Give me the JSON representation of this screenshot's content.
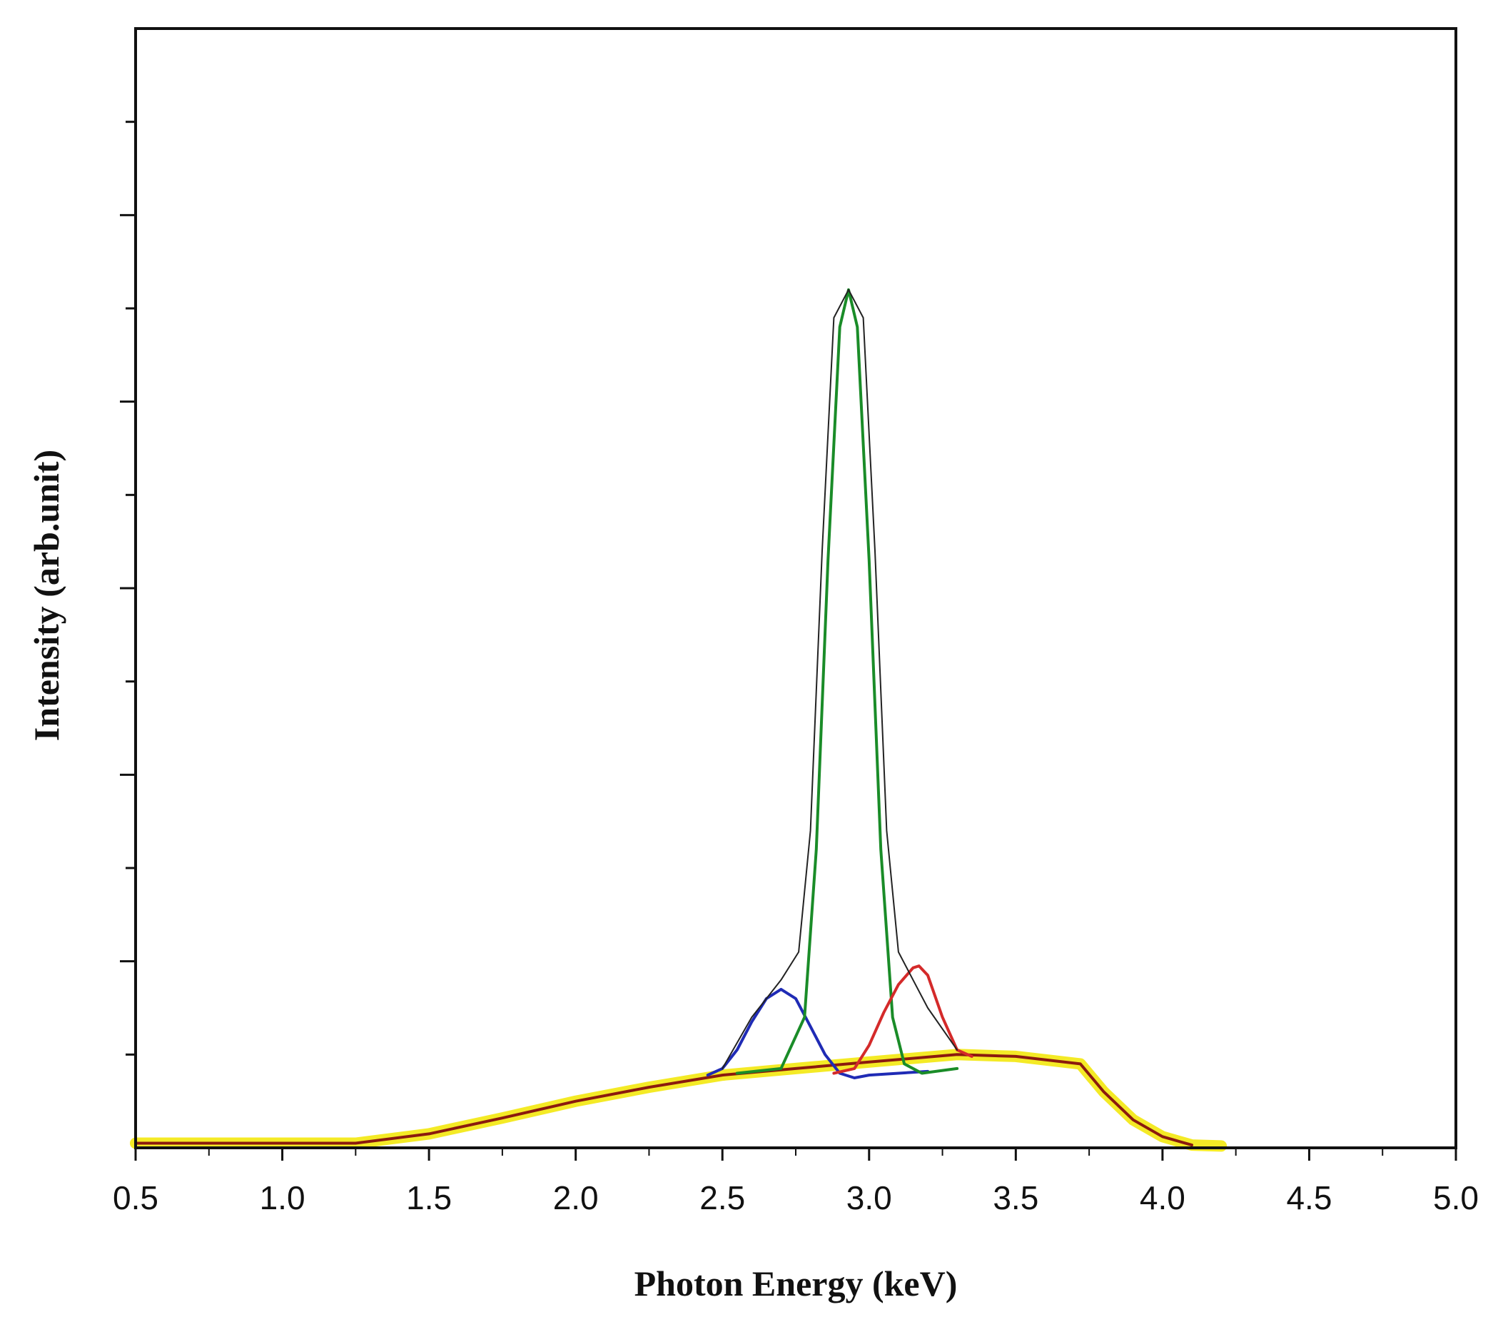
{
  "chart_data": {
    "type": "line",
    "title": "",
    "xlabel": "Photon Energy (keV)",
    "ylabel": "Intensity (arb.unit)",
    "xlim": [
      0.5,
      5.0
    ],
    "ylim": [
      0,
      12
    ],
    "x_ticks": [
      "0.5",
      "1.0",
      "1.5",
      "2.0",
      "2.5",
      "3.0",
      "3.5",
      "4.0",
      "4.5",
      "5.0"
    ],
    "y_tick_labels_shown": false,
    "grid": false,
    "legend": "none",
    "series": [
      {
        "color": "#f2e600",
        "style": "thick-highlight",
        "x": [
          0.5,
          1.25,
          1.5,
          1.75,
          2.0,
          2.25,
          2.5,
          2.75,
          3.0,
          3.3,
          3.5,
          3.72,
          3.8,
          3.9,
          4.0,
          4.1,
          4.2
        ],
        "y": [
          0.05,
          0.05,
          0.15,
          0.32,
          0.5,
          0.65,
          0.78,
          0.85,
          0.92,
          1.0,
          0.98,
          0.9,
          0.6,
          0.3,
          0.12,
          0.03,
          0.02
        ]
      },
      {
        "color": "#8b1a0e",
        "x": [
          0.5,
          1.25,
          1.5,
          1.75,
          2.0,
          2.25,
          2.5,
          2.75,
          3.0,
          3.3,
          3.5,
          3.72,
          3.8,
          3.9,
          4.0,
          4.1
        ],
        "y": [
          0.05,
          0.05,
          0.15,
          0.32,
          0.5,
          0.65,
          0.78,
          0.85,
          0.92,
          1.0,
          0.98,
          0.9,
          0.6,
          0.3,
          0.12,
          0.03
        ]
      },
      {
        "color": "#1f2bb5",
        "x": [
          2.45,
          2.5,
          2.55,
          2.6,
          2.65,
          2.7,
          2.75,
          2.8,
          2.85,
          2.9,
          2.95,
          3.0,
          3.2
        ],
        "y": [
          0.78,
          0.85,
          1.05,
          1.35,
          1.6,
          1.7,
          1.6,
          1.3,
          1.0,
          0.8,
          0.75,
          0.78,
          0.82
        ]
      },
      {
        "color": "#1a8c28",
        "x": [
          2.55,
          2.7,
          2.78,
          2.82,
          2.86,
          2.9,
          2.93,
          2.96,
          3.0,
          3.04,
          3.08,
          3.12,
          3.18,
          3.3
        ],
        "y": [
          0.8,
          0.85,
          1.4,
          3.2,
          6.3,
          8.8,
          9.2,
          8.8,
          6.3,
          3.2,
          1.4,
          0.9,
          0.8,
          0.85
        ]
      },
      {
        "color": "#d42a2a",
        "x": [
          2.88,
          2.95,
          3.0,
          3.05,
          3.1,
          3.15,
          3.17,
          3.2,
          3.25,
          3.3,
          3.35
        ],
        "y": [
          0.8,
          0.85,
          1.1,
          1.45,
          1.75,
          1.93,
          1.95,
          1.85,
          1.4,
          1.05,
          0.98
        ]
      },
      {
        "color": "#222222",
        "x": [
          2.5,
          2.6,
          2.7,
          2.76,
          2.8,
          2.84,
          2.88,
          2.93,
          2.98,
          3.02,
          3.06,
          3.1,
          3.15,
          3.2,
          3.3
        ],
        "y": [
          0.85,
          1.4,
          1.8,
          2.1,
          3.4,
          6.4,
          8.9,
          9.2,
          8.9,
          6.4,
          3.4,
          2.1,
          1.8,
          1.5,
          1.05
        ]
      }
    ]
  }
}
